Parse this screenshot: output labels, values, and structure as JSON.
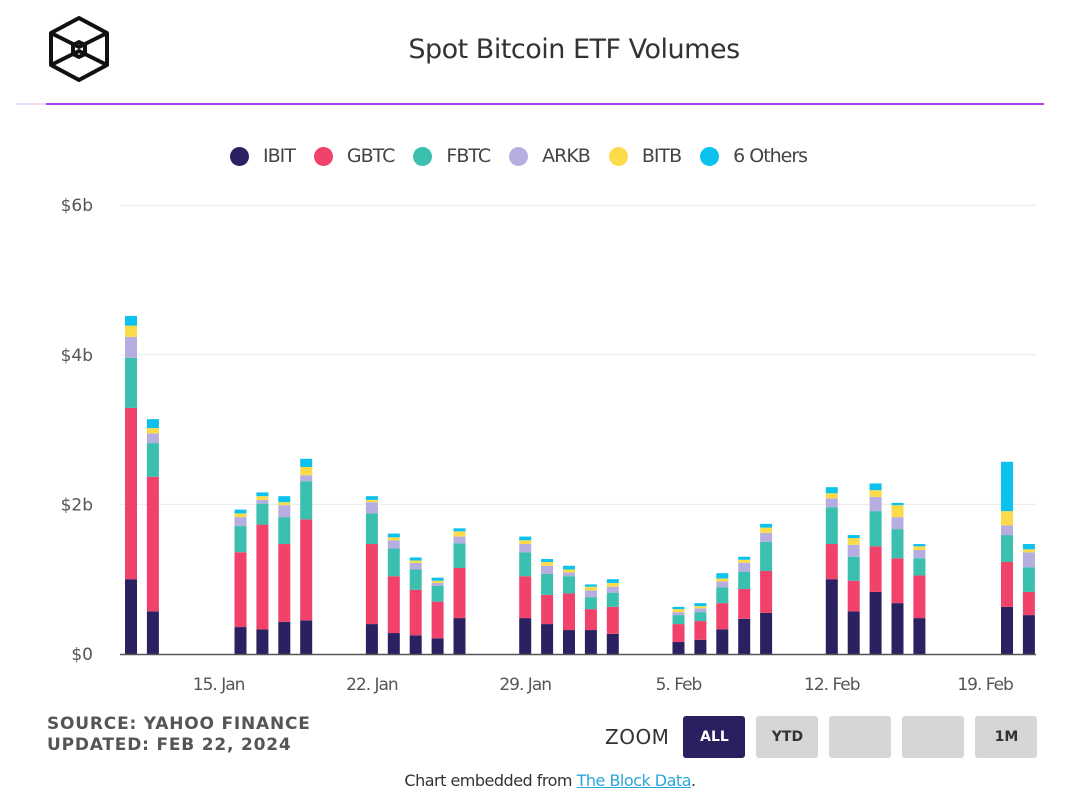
{
  "header": {
    "logo_icon": "the-block-cube-logo",
    "title": "Spot Bitcoin ETF Volumes"
  },
  "legend": [
    {
      "name": "IBIT",
      "color": "#2a2160"
    },
    {
      "name": "GBTC",
      "color": "#f0426a"
    },
    {
      "name": "FBTC",
      "color": "#3bbfae"
    },
    {
      "name": "ARKB",
      "color": "#b6aee0"
    },
    {
      "name": "BITB",
      "color": "#fcdb4a"
    },
    {
      "name": "6 Others",
      "color": "#0bc2ef"
    }
  ],
  "chart_data": {
    "type": "bar",
    "stacked": true,
    "title": "Spot Bitcoin ETF Volumes",
    "xlabel": "",
    "ylabel": "",
    "ylim": [
      0,
      6
    ],
    "yunit": "billion USD",
    "yticks": [
      {
        "value": 0,
        "label": "$0"
      },
      {
        "value": 2,
        "label": "$2b"
      },
      {
        "value": 4,
        "label": "$4b"
      },
      {
        "value": 6,
        "label": "$6b"
      }
    ],
    "xticks": [
      {
        "date": "2024-01-15",
        "label": "15. Jan"
      },
      {
        "date": "2024-01-22",
        "label": "22. Jan"
      },
      {
        "date": "2024-01-29",
        "label": "29. Jan"
      },
      {
        "date": "2024-02-05",
        "label": "5. Feb"
      },
      {
        "date": "2024-02-12",
        "label": "12. Feb"
      },
      {
        "date": "2024-02-19",
        "label": "19. Feb"
      }
    ],
    "xrange": [
      "2024-01-10",
      "2024-02-22"
    ],
    "grid": true,
    "legend_position": "top-center",
    "categories": [
      "2024-01-11",
      "2024-01-12",
      "2024-01-16",
      "2024-01-17",
      "2024-01-18",
      "2024-01-19",
      "2024-01-22",
      "2024-01-23",
      "2024-01-24",
      "2024-01-25",
      "2024-01-26",
      "2024-01-29",
      "2024-01-30",
      "2024-01-31",
      "2024-02-01",
      "2024-02-02",
      "2024-02-05",
      "2024-02-06",
      "2024-02-07",
      "2024-02-08",
      "2024-02-09",
      "2024-02-12",
      "2024-02-13",
      "2024-02-14",
      "2024-02-15",
      "2024-02-16",
      "2024-02-20",
      "2024-02-21"
    ],
    "series": [
      {
        "name": "IBIT",
        "color": "#2a2160",
        "values": [
          1.0,
          0.57,
          0.36,
          0.33,
          0.43,
          0.45,
          0.4,
          0.28,
          0.25,
          0.21,
          0.48,
          0.48,
          0.4,
          0.32,
          0.32,
          0.27,
          0.16,
          0.19,
          0.33,
          0.47,
          0.55,
          1.0,
          0.57,
          0.83,
          0.68,
          0.48,
          0.63,
          0.52
        ]
      },
      {
        "name": "GBTC",
        "color": "#f0426a",
        "values": [
          2.29,
          1.8,
          1.0,
          1.4,
          1.04,
          1.35,
          1.07,
          0.76,
          0.61,
          0.49,
          0.67,
          0.56,
          0.39,
          0.49,
          0.28,
          0.36,
          0.24,
          0.25,
          0.35,
          0.4,
          0.56,
          0.47,
          0.41,
          0.61,
          0.6,
          0.57,
          0.6,
          0.31
        ]
      },
      {
        "name": "FBTC",
        "color": "#3bbfae",
        "values": [
          0.67,
          0.45,
          0.35,
          0.28,
          0.36,
          0.51,
          0.41,
          0.37,
          0.27,
          0.21,
          0.33,
          0.32,
          0.28,
          0.23,
          0.16,
          0.19,
          0.12,
          0.12,
          0.21,
          0.23,
          0.39,
          0.49,
          0.32,
          0.47,
          0.39,
          0.23,
          0.36,
          0.33
        ]
      },
      {
        "name": "ARKB",
        "color": "#b6aee0",
        "values": [
          0.28,
          0.13,
          0.12,
          0.05,
          0.16,
          0.08,
          0.15,
          0.11,
          0.09,
          0.04,
          0.09,
          0.11,
          0.11,
          0.05,
          0.09,
          0.08,
          0.04,
          0.05,
          0.08,
          0.12,
          0.12,
          0.12,
          0.16,
          0.19,
          0.16,
          0.11,
          0.13,
          0.2
        ]
      },
      {
        "name": "BITB",
        "color": "#fcdb4a",
        "values": [
          0.15,
          0.07,
          0.05,
          0.05,
          0.04,
          0.11,
          0.03,
          0.04,
          0.03,
          0.03,
          0.07,
          0.05,
          0.05,
          0.04,
          0.05,
          0.05,
          0.04,
          0.03,
          0.04,
          0.04,
          0.07,
          0.07,
          0.09,
          0.09,
          0.16,
          0.05,
          0.19,
          0.04
        ]
      },
      {
        "name": "6 Others",
        "color": "#0bc2ef",
        "values": [
          0.13,
          0.12,
          0.05,
          0.05,
          0.08,
          0.11,
          0.05,
          0.05,
          0.04,
          0.04,
          0.04,
          0.05,
          0.04,
          0.05,
          0.03,
          0.05,
          0.03,
          0.04,
          0.07,
          0.04,
          0.05,
          0.08,
          0.04,
          0.09,
          0.03,
          0.03,
          0.66,
          0.07
        ]
      }
    ]
  },
  "footer": {
    "source": "SOURCE: YAHOO FINANCE",
    "updated": "UPDATED: FEB 22, 2024",
    "zoom_label": "ZOOM",
    "zoom_buttons": [
      {
        "label": "ALL",
        "active": true
      },
      {
        "label": "YTD",
        "active": false
      },
      {
        "label": "",
        "active": false
      },
      {
        "label": "",
        "active": false
      },
      {
        "label": "1M",
        "active": false
      }
    ],
    "embed_prefix": "Chart embedded from ",
    "embed_link": "The Block Data",
    "embed_suffix": "."
  }
}
